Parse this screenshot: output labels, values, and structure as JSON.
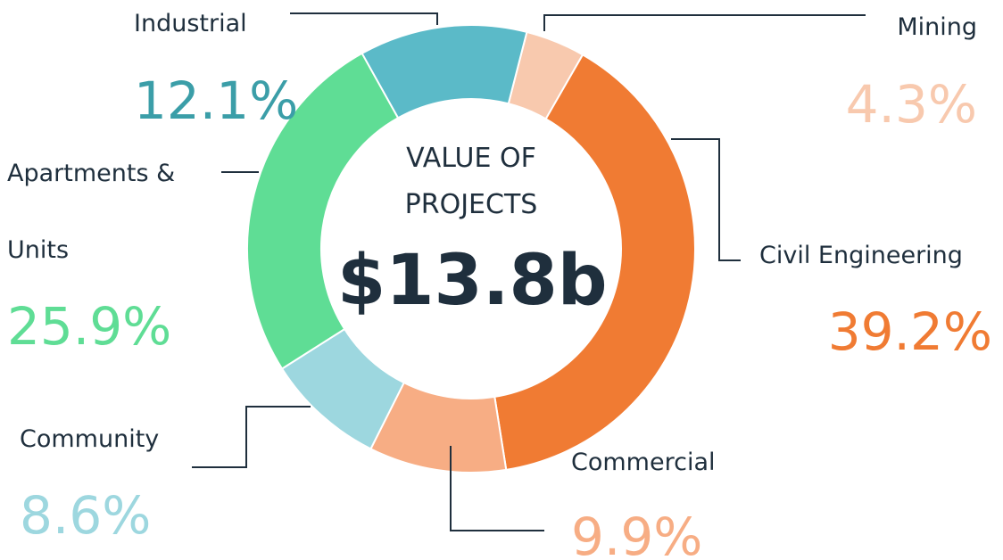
{
  "chart_data": {
    "type": "donut",
    "title": "VALUE OF PROJECTS",
    "total_label": "$13.8b",
    "categories": [
      "Mining",
      "Civil Engineering",
      "Commercial",
      "Community",
      "Apartments & Units",
      "Industrial"
    ],
    "values": [
      4.3,
      39.2,
      9.9,
      8.6,
      25.9,
      12.1
    ],
    "value_labels": [
      "4.3%",
      "39.2%",
      "9.9%",
      "8.6%",
      "25.9%",
      "12.1%"
    ],
    "colors": [
      "#f8c9ae",
      "#f07b33",
      "#f7ad84",
      "#9dd7df",
      "#5fdd95",
      "#5bbac8"
    ],
    "label_colors": [
      "#f8c9ae",
      "#f07b33",
      "#f7ad84",
      "#9dd7df",
      "#5fdd95",
      "#3b9ea8"
    ]
  }
}
